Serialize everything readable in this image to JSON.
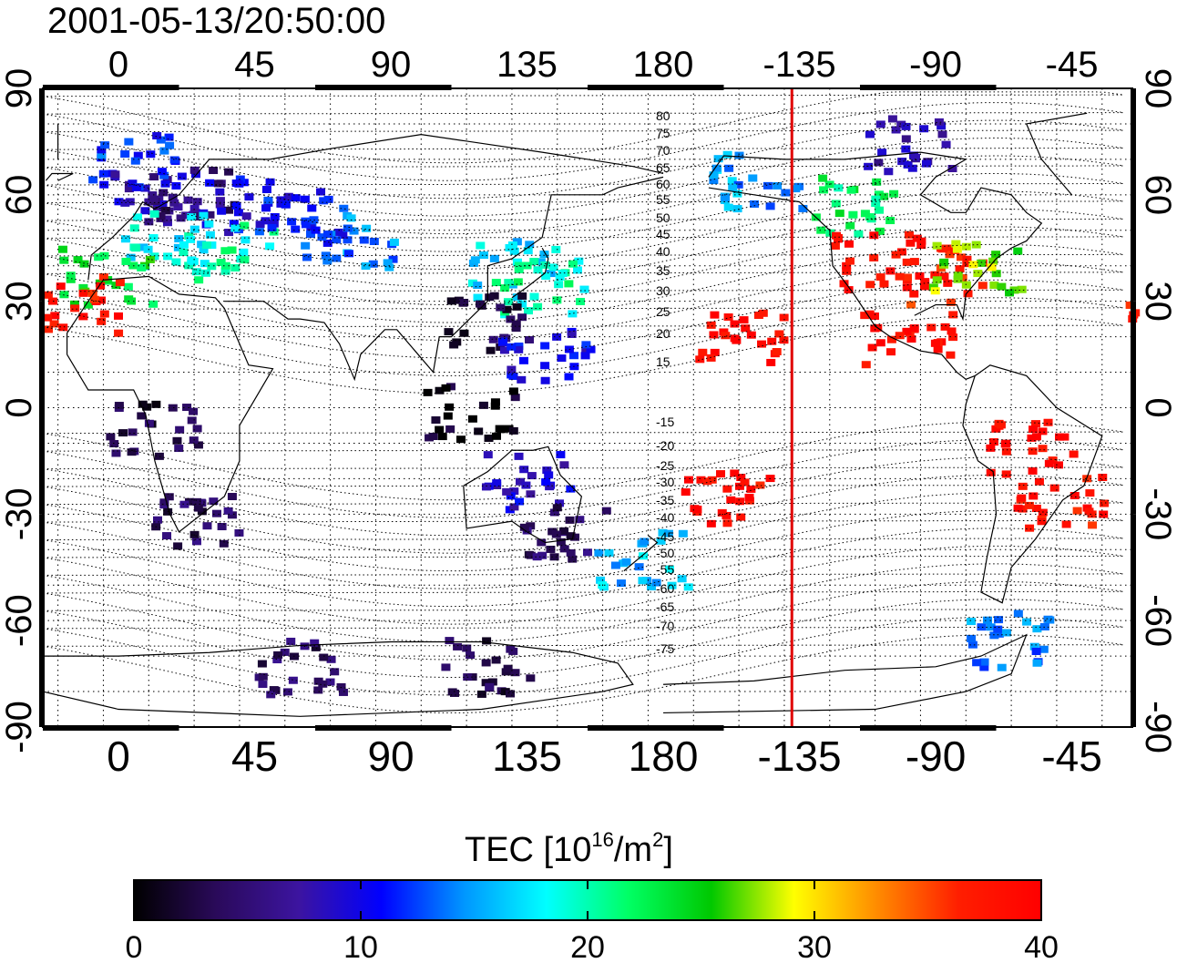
{
  "timestamp": "2001-05-13/20:50:00",
  "map": {
    "lon_ticks_top": [
      "0",
      "45",
      "90",
      "135",
      "180",
      "-135",
      "-90",
      "-45"
    ],
    "lon_ticks_bottom": [
      "0",
      "45",
      "90",
      "135",
      "180",
      "-135",
      "-90",
      "-45"
    ],
    "lat_ticks_left": [
      "90",
      "60",
      "30",
      "0",
      "-30",
      "-60",
      "-90"
    ],
    "lat_ticks_right": [
      "90",
      "60",
      "30",
      "0",
      "-30",
      "-60",
      "-90"
    ],
    "contour_labels_north": [
      "80",
      "75",
      "70",
      "65",
      "60",
      "55",
      "50",
      "45",
      "40",
      "35",
      "30",
      "25",
      "20",
      "15"
    ],
    "contour_labels_south": [
      "-15",
      "-20",
      "-25",
      "-30",
      "-35",
      "-40",
      "-45",
      "-50",
      "-55",
      "-60",
      "-65",
      "-70",
      "-75"
    ],
    "terminator_longitude": -137.5,
    "terminator_color": "#e00000"
  },
  "colorbar": {
    "title_main": "TEC  [10",
    "title_sup1": "16",
    "title_mid": "/m",
    "title_sup2": "2",
    "title_end": "]",
    "tick_labels": [
      "0",
      "10",
      "20",
      "30",
      "40"
    ],
    "min": 0,
    "max": 40,
    "colors": [
      "#000000",
      "#2a0a5a",
      "#3c14a0",
      "#0000ff",
      "#0096ff",
      "#00ffff",
      "#00ff64",
      "#00c800",
      "#ffff00",
      "#ff8c00",
      "#ff1e00",
      "#ff0000"
    ]
  },
  "tec_patches": [
    {
      "lon": 10,
      "lat": 60,
      "tec": 8
    },
    {
      "lon": 25,
      "lat": 62,
      "tec": 5
    },
    {
      "lon": 40,
      "lat": 58,
      "tec": 10
    },
    {
      "lon": 15,
      "lat": 48,
      "tec": 18
    },
    {
      "lon": 35,
      "lat": 45,
      "tec": 20
    },
    {
      "lon": -5,
      "lat": 38,
      "tec": 24
    },
    {
      "lon": -15,
      "lat": 30,
      "tec": 38
    },
    {
      "lon": 5,
      "lat": 70,
      "tec": 12
    },
    {
      "lon": 60,
      "lat": 55,
      "tec": 11
    },
    {
      "lon": 75,
      "lat": 48,
      "tec": 14
    },
    {
      "lon": 130,
      "lat": 40,
      "tec": 17
    },
    {
      "lon": 138,
      "lat": 35,
      "tec": 20
    },
    {
      "lon": 122,
      "lat": 25,
      "tec": 3
    },
    {
      "lon": 140,
      "lat": 15,
      "tec": 10
    },
    {
      "lon": 115,
      "lat": 0,
      "tec": 1
    },
    {
      "lon": 135,
      "lat": -20,
      "tec": 9
    },
    {
      "lon": 145,
      "lat": -35,
      "tec": 4
    },
    {
      "lon": 172,
      "lat": -42,
      "tec": 16
    },
    {
      "lon": 25,
      "lat": -30,
      "tec": 4
    },
    {
      "lon": 10,
      "lat": -5,
      "tec": 3
    },
    {
      "lon": 60,
      "lat": -72,
      "tec": 4
    },
    {
      "lon": 120,
      "lat": -72,
      "tec": 3
    },
    {
      "lon": -150,
      "lat": 65,
      "tec": 15
    },
    {
      "lon": -120,
      "lat": 58,
      "tec": 22
    },
    {
      "lon": -110,
      "lat": 42,
      "tec": 39
    },
    {
      "lon": -90,
      "lat": 38,
      "tec": 37
    },
    {
      "lon": -78,
      "lat": 40,
      "tec": 27
    },
    {
      "lon": -100,
      "lat": 20,
      "tec": 39
    },
    {
      "lon": -155,
      "lat": 20,
      "tec": 39
    },
    {
      "lon": -60,
      "lat": -10,
      "tec": 39
    },
    {
      "lon": -50,
      "lat": -25,
      "tec": 38
    },
    {
      "lon": -65,
      "lat": -65,
      "tec": 14
    },
    {
      "lon": -100,
      "lat": 75,
      "tec": 8
    },
    {
      "lon": -160,
      "lat": -25,
      "tec": 38
    }
  ]
}
